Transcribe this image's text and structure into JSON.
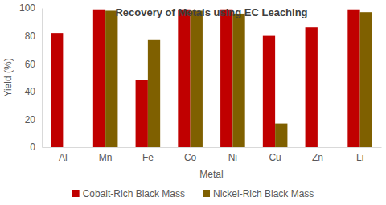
{
  "chart_data": {
    "type": "bar",
    "title": "Recovery of Metals using EC Leaching",
    "x_label": "Metal",
    "y_label": "Yield (%)",
    "categories": [
      "Al",
      "Mn",
      "Fe",
      "Co",
      "Ni",
      "Cu",
      "Zn",
      "Li"
    ],
    "series": [
      {
        "name": "Cobalt-Rich Black Mass",
        "color": "#c00000",
        "values": [
          82,
          99,
          48,
          99,
          99,
          80,
          86,
          99
        ]
      },
      {
        "name": "Nickel-Rich Black Mass",
        "color": "#7f6000",
        "values": [
          null,
          98,
          77,
          98,
          96,
          17,
          null,
          97
        ]
      }
    ],
    "ylim": [
      0,
      100
    ],
    "yticks": [
      0,
      20,
      40,
      60,
      80,
      100
    ],
    "grid": false,
    "legend": "bottom"
  }
}
